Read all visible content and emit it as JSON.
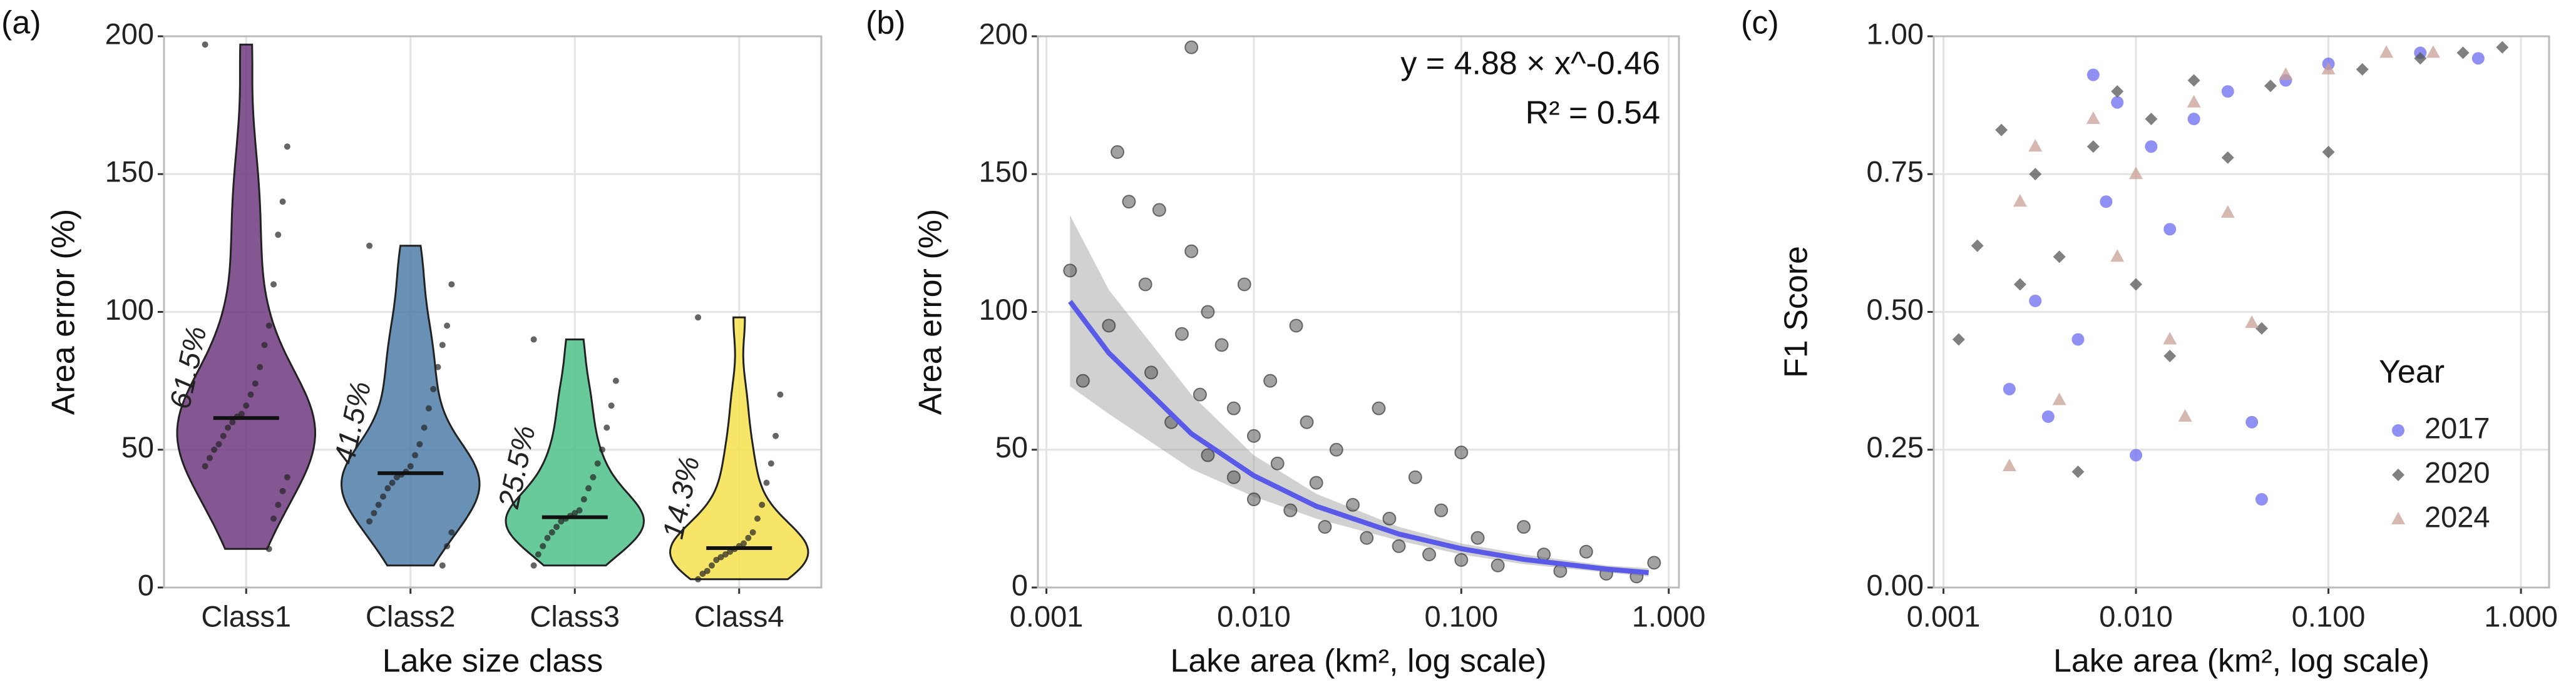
{
  "chart_data": [
    {
      "type": "violin",
      "tag": "(a)",
      "x_label": "Lake size class",
      "y_label": "Area error (%)",
      "categories": [
        "Class1",
        "Class2",
        "Class3",
        "Class4"
      ],
      "colors": [
        "#6f3a80",
        "#4f7ea8",
        "#4dbf8a",
        "#f5e04c"
      ],
      "values": [
        61.5,
        41.5,
        25.5,
        14.3
      ],
      "value_labels": [
        "61.5%",
        "41.5%",
        "25.5%",
        "14.3%"
      ],
      "points": [
        [
          197,
          160,
          140,
          128,
          110,
          95,
          88,
          80,
          74,
          70,
          66,
          63,
          62,
          60,
          58,
          55,
          52,
          50,
          47,
          44,
          40,
          35,
          30,
          25,
          14
        ],
        [
          124,
          110,
          95,
          88,
          80,
          72,
          65,
          58,
          52,
          48,
          44,
          42,
          41,
          40,
          38,
          36,
          33,
          30,
          27,
          24,
          20,
          15,
          8
        ],
        [
          90,
          75,
          66,
          58,
          50,
          45,
          40,
          36,
          32,
          28,
          27,
          26,
          25,
          24,
          22,
          20,
          18,
          15,
          12,
          8
        ],
        [
          98,
          70,
          55,
          45,
          38,
          30,
          25,
          20,
          18,
          16,
          15,
          14,
          13,
          12,
          11,
          10,
          8,
          6,
          5,
          3
        ]
      ],
      "ylim": [
        0,
        200
      ],
      "yticks": [
        0,
        50,
        100,
        150,
        200
      ],
      "grid": true
    },
    {
      "type": "scatter",
      "tag": "(b)",
      "x_label": "Lake area (km², log scale)",
      "y_label": "Area error (%)",
      "annotations": [
        "y = 4.88 × x^-0.46",
        "R² = 0.54"
      ],
      "xlog": true,
      "xlim": [
        0.00091,
        1.12
      ],
      "xticks": [
        0.001,
        {
          "value": 0.01,
          "label": "0.010"
        },
        {
          "value": 0.1,
          "label": "0.100"
        },
        {
          "value": 1,
          "label": "1.000"
        }
      ],
      "ylim": [
        0,
        200
      ],
      "yticks": [
        0,
        50,
        100,
        150,
        200
      ],
      "grid": true,
      "x": [
        0.0013,
        0.0015,
        0.002,
        0.0022,
        0.0025,
        0.003,
        0.0032,
        0.0035,
        0.004,
        0.0045,
        0.005,
        0.005,
        0.0055,
        0.006,
        0.006,
        0.007,
        0.008,
        0.008,
        0.009,
        0.01,
        0.01,
        0.012,
        0.013,
        0.015,
        0.016,
        0.018,
        0.02,
        0.022,
        0.025,
        0.03,
        0.035,
        0.04,
        0.045,
        0.05,
        0.06,
        0.07,
        0.08,
        0.1,
        0.1,
        0.12,
        0.15,
        0.2,
        0.25,
        0.3,
        0.4,
        0.5,
        0.7,
        0.85
      ],
      "values": [
        115,
        75,
        95,
        158,
        140,
        110,
        78,
        137,
        60,
        92,
        196,
        122,
        70,
        100,
        48,
        88,
        65,
        40,
        110,
        55,
        32,
        75,
        45,
        28,
        95,
        60,
        38,
        22,
        50,
        30,
        18,
        65,
        25,
        15,
        40,
        12,
        28,
        49,
        10,
        18,
        8,
        22,
        12,
        6,
        13,
        5,
        4,
        9
      ],
      "color": "#555555",
      "fit": {
        "color": "#5a5ae8",
        "x": [
          0.0013,
          0.002,
          0.005,
          0.01,
          0.02,
          0.05,
          0.1,
          0.2,
          0.5,
          0.8
        ],
        "values": [
          103.8,
          85.1,
          55.8,
          40.6,
          29.5,
          19.4,
          14.1,
          10.2,
          6.7,
          5.4
        ],
        "lower": [
          73,
          63,
          43,
          33,
          25,
          17,
          12,
          8.5,
          5.5,
          4
        ],
        "upper": [
          135,
          108,
          70,
          48,
          34,
          22,
          16,
          12,
          8,
          7
        ]
      }
    },
    {
      "type": "scatter",
      "tag": "(c)",
      "x_label": "Lake area (km², log scale)",
      "y_label": "F1 Score",
      "xlog": true,
      "xlim": [
        0.00089,
        1.4
      ],
      "xticks": [
        0.001,
        {
          "value": 0.01,
          "label": "0.010"
        },
        {
          "value": 0.1,
          "label": "0.100"
        },
        {
          "value": 1,
          "label": "1.000"
        }
      ],
      "ylim": [
        0,
        1
      ],
      "yticks": [
        {
          "value": 0,
          "label": "0.00"
        },
        {
          "value": 0.25,
          "label": "0.25"
        },
        {
          "value": 0.5,
          "label": "0.50"
        },
        {
          "value": 0.75,
          "label": "0.75"
        },
        {
          "value": 1,
          "label": "1.00"
        }
      ],
      "grid": true,
      "legend_title": "Year",
      "legend": "right",
      "series": [
        {
          "name": "2017",
          "color": "#6b6bf0",
          "shape": "circle",
          "x": [
            0.0022,
            0.003,
            0.0035,
            0.005,
            0.006,
            0.007,
            0.008,
            0.01,
            0.012,
            0.015,
            0.02,
            0.03,
            0.04,
            0.045,
            0.06,
            0.1,
            0.3,
            0.6
          ],
          "values": [
            0.36,
            0.52,
            0.31,
            0.45,
            0.93,
            0.7,
            0.88,
            0.24,
            0.8,
            0.65,
            0.85,
            0.9,
            0.3,
            0.16,
            0.92,
            0.95,
            0.97,
            0.96
          ]
        },
        {
          "name": "2020",
          "color": "#555555",
          "shape": "diamond",
          "x": [
            0.0012,
            0.0015,
            0.002,
            0.0025,
            0.003,
            0.004,
            0.005,
            0.006,
            0.008,
            0.01,
            0.012,
            0.015,
            0.02,
            0.03,
            0.045,
            0.05,
            0.1,
            0.15,
            0.3,
            0.5,
            0.8
          ],
          "values": [
            0.45,
            0.62,
            0.83,
            0.55,
            0.75,
            0.6,
            0.21,
            0.8,
            0.9,
            0.55,
            0.85,
            0.42,
            0.92,
            0.78,
            0.47,
            0.91,
            0.79,
            0.94,
            0.96,
            0.97,
            0.98
          ]
        },
        {
          "name": "2024",
          "color": "#c9a095",
          "shape": "triangle",
          "x": [
            0.0022,
            0.0025,
            0.003,
            0.004,
            0.006,
            0.008,
            0.01,
            0.015,
            0.018,
            0.02,
            0.03,
            0.04,
            0.06,
            0.1,
            0.2,
            0.35
          ],
          "values": [
            0.22,
            0.7,
            0.8,
            0.34,
            0.85,
            0.6,
            0.75,
            0.45,
            0.31,
            0.88,
            0.68,
            0.48,
            0.93,
            0.94,
            0.97,
            0.97
          ]
        }
      ]
    }
  ]
}
